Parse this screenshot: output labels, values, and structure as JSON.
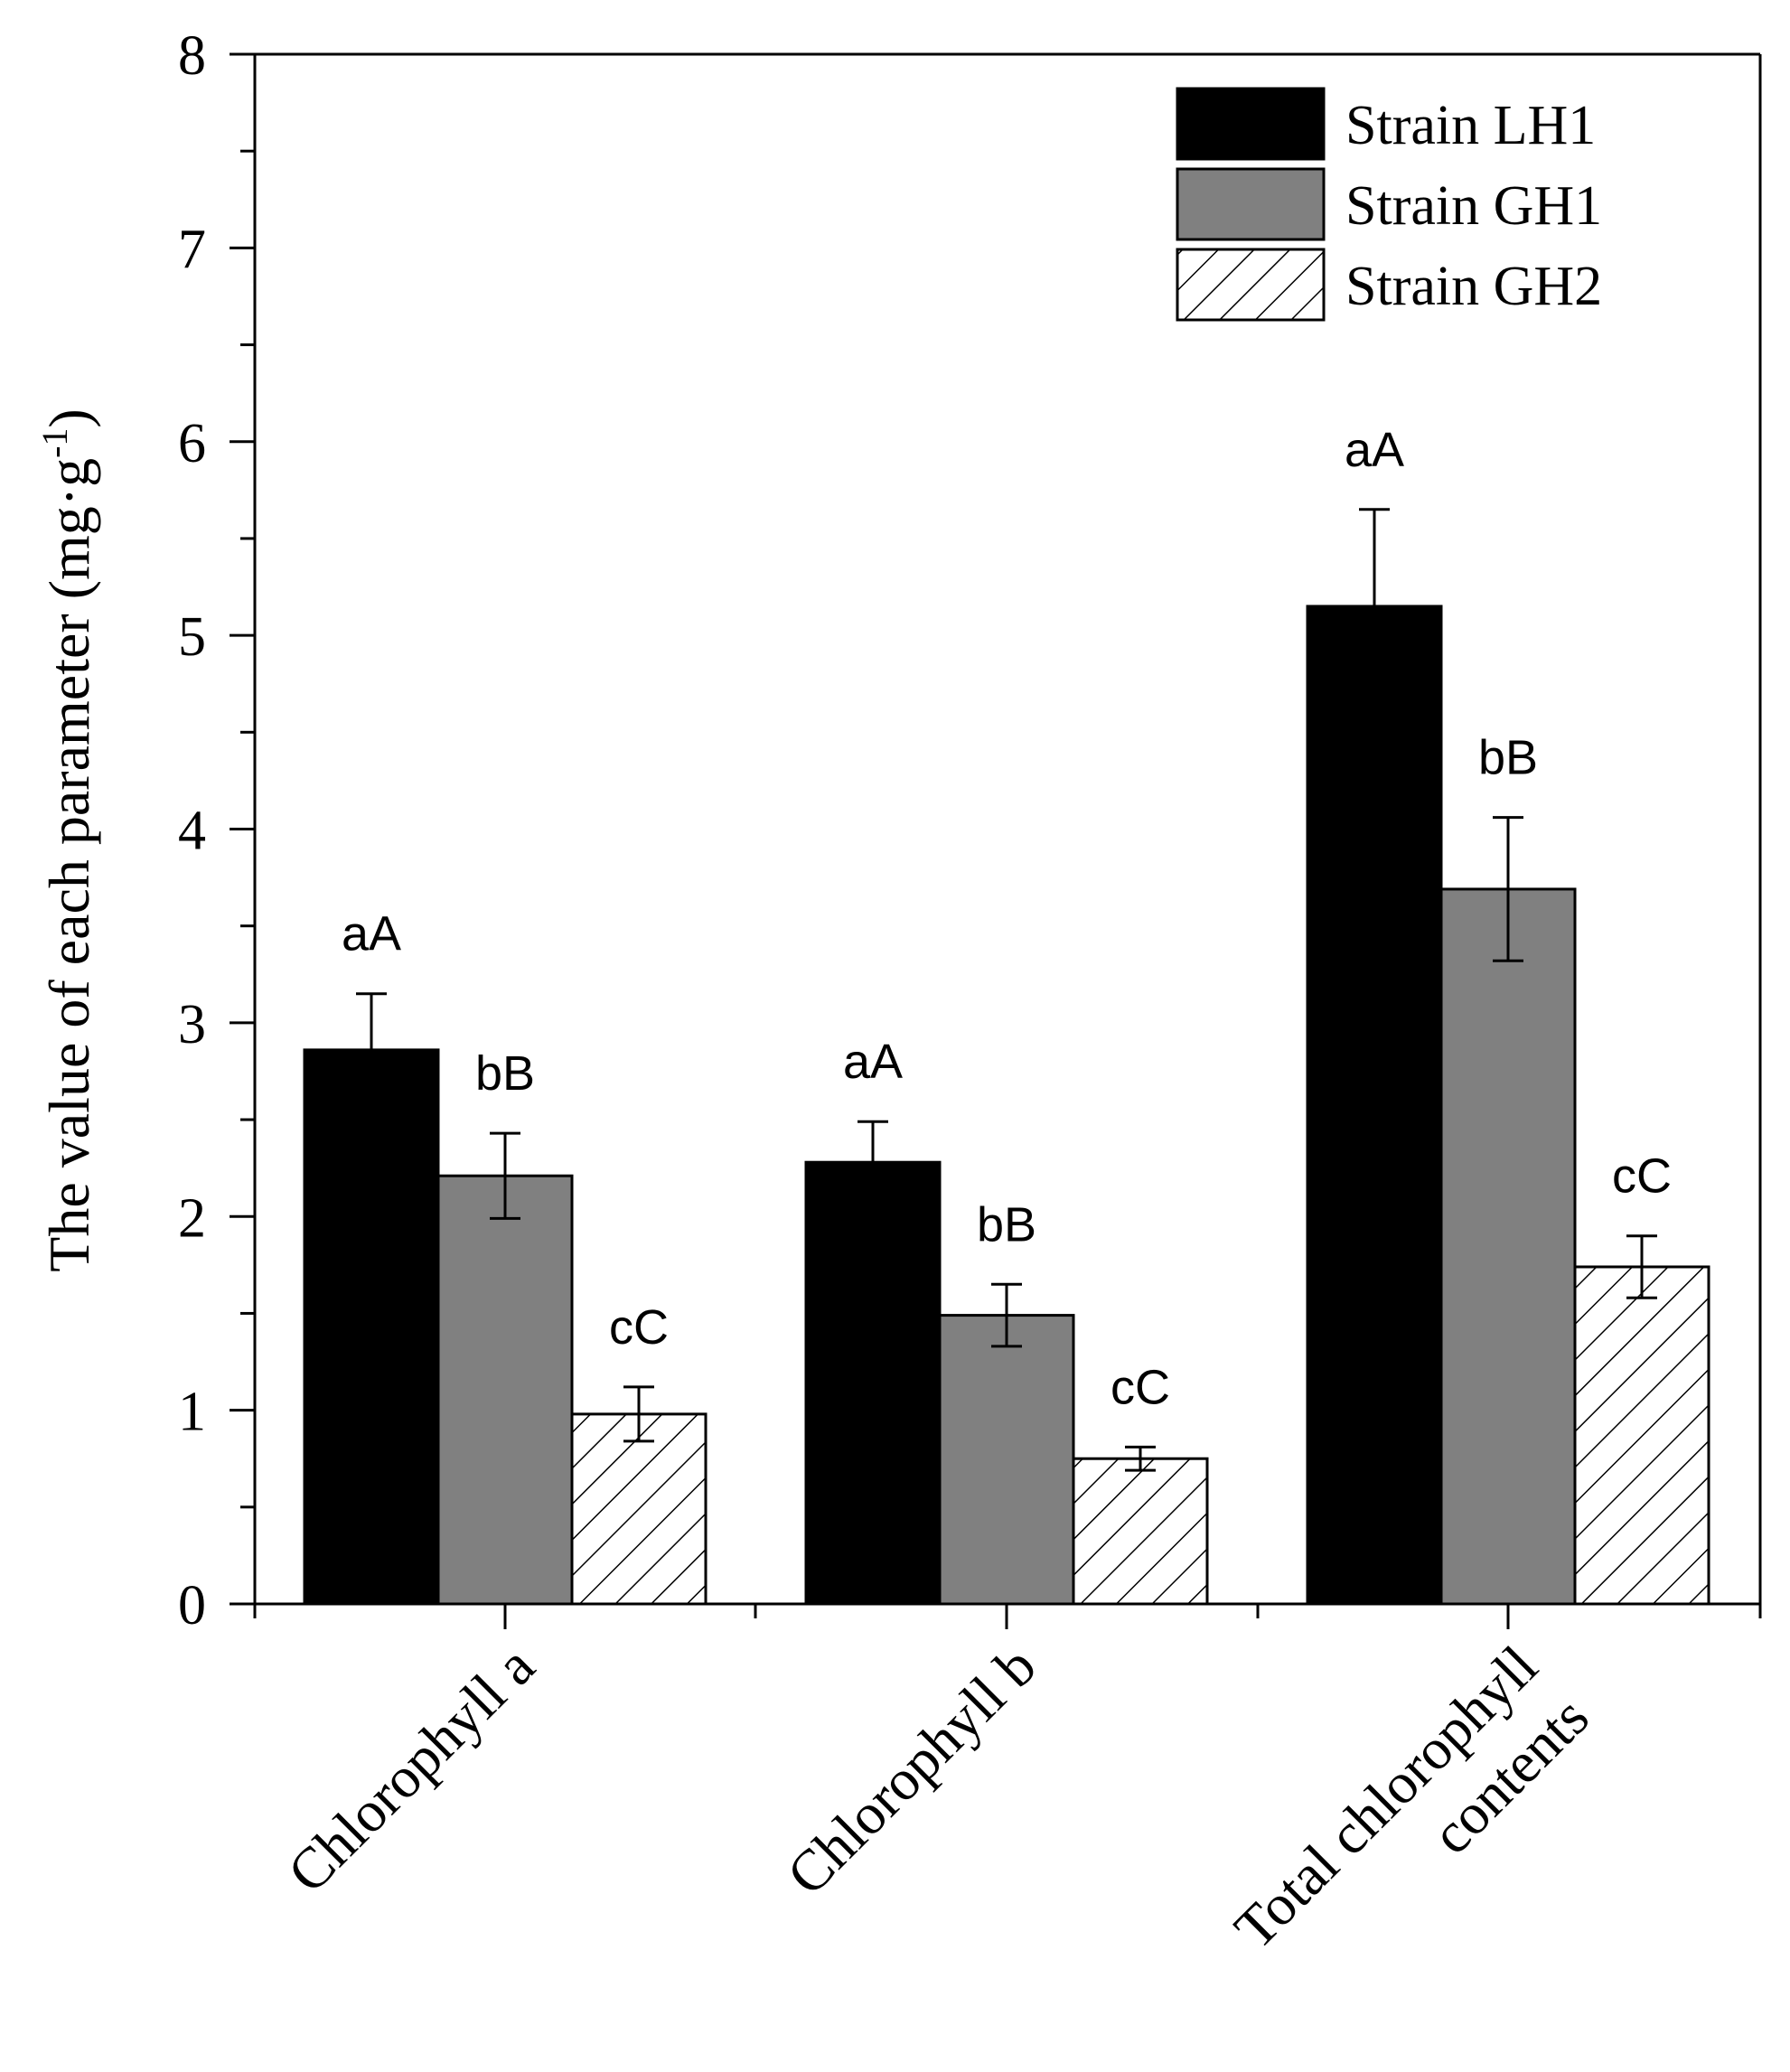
{
  "chart_data": {
    "type": "bar",
    "title": "",
    "ylabel_main": "The value of each parameter (mg·g",
    "ylabel_sup": "-1",
    "ylabel_close": ")",
    "ylim": [
      0,
      8
    ],
    "yticks": [
      "0",
      "1",
      "2",
      "3",
      "4",
      "5",
      "6",
      "7",
      "8"
    ],
    "categories": [
      "Chlorophyll a",
      "Chlorophyll b",
      "Total chlorophyll contents"
    ],
    "category_lines": [
      [
        "Chlorophyll a"
      ],
      [
        "Chlorophyll b"
      ],
      [
        "Total chlorophyll",
        "contents"
      ]
    ],
    "series": [
      {
        "name": "Strain LH1",
        "fill": "#000000",
        "pattern": "solid",
        "values": [
          2.86,
          2.28,
          5.15
        ],
        "errors": [
          0.29,
          0.21,
          0.5
        ],
        "labels": [
          "aA",
          "aA",
          "aA"
        ]
      },
      {
        "name": "Strain GH1",
        "fill": "#808080",
        "pattern": "solid",
        "values": [
          2.21,
          1.49,
          3.69
        ],
        "errors": [
          0.22,
          0.16,
          0.37
        ],
        "labels": [
          "bB",
          "bB",
          "bB"
        ]
      },
      {
        "name": "Strain GH2",
        "fill": "#ffffff",
        "pattern": "hatch",
        "values": [
          0.98,
          0.75,
          1.74
        ],
        "errors": [
          0.14,
          0.06,
          0.16
        ],
        "labels": [
          "cC",
          "cC",
          "cC"
        ]
      }
    ],
    "legend_position": "top-right"
  }
}
